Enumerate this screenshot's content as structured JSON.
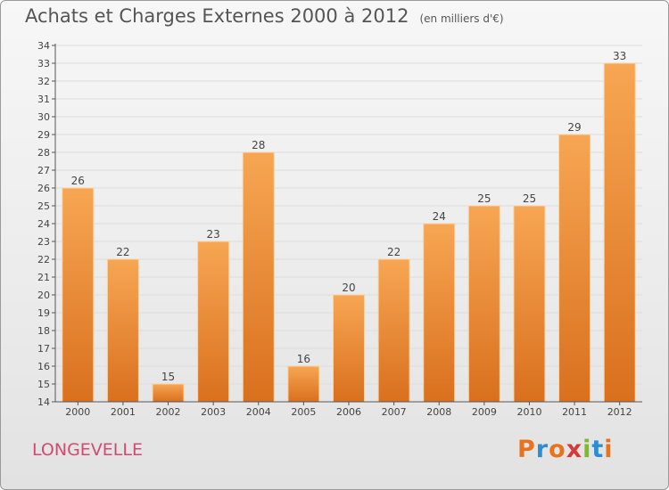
{
  "header": {
    "title": "Achats et Charges Externes 2000 à 2012",
    "unit": "(en milliers d'€)"
  },
  "footer": {
    "commune": "LONGEVELLE",
    "logo_text": "Proxiti",
    "logo_colors": [
      "#e8731c",
      "#2c8cd4",
      "#e8731c",
      "#d43a3a",
      "#7dbb2b",
      "#2c8cd4",
      "#e8731c"
    ]
  },
  "colors": {
    "bar_light": "#f7a653",
    "bar_dark": "#d9701e",
    "axis": "#555555",
    "grid": "#dcdcdc"
  },
  "chart_data": {
    "type": "bar",
    "title": "Achats et Charges Externes 2000 à 2012",
    "subtitle": "(en milliers d'€)",
    "xlabel": "",
    "ylabel": "",
    "categories": [
      "2000",
      "2001",
      "2002",
      "2003",
      "2004",
      "2005",
      "2006",
      "2007",
      "2008",
      "2009",
      "2010",
      "2011",
      "2012"
    ],
    "values": [
      26,
      22,
      15,
      23,
      28,
      16,
      20,
      22,
      24,
      25,
      25,
      29,
      33
    ],
    "ylim": [
      14,
      34
    ],
    "yticks": [
      14,
      15,
      16,
      17,
      18,
      19,
      20,
      21,
      22,
      23,
      24,
      25,
      26,
      27,
      28,
      29,
      30,
      31,
      32,
      33,
      34
    ],
    "grid": true,
    "data_labels": true
  }
}
